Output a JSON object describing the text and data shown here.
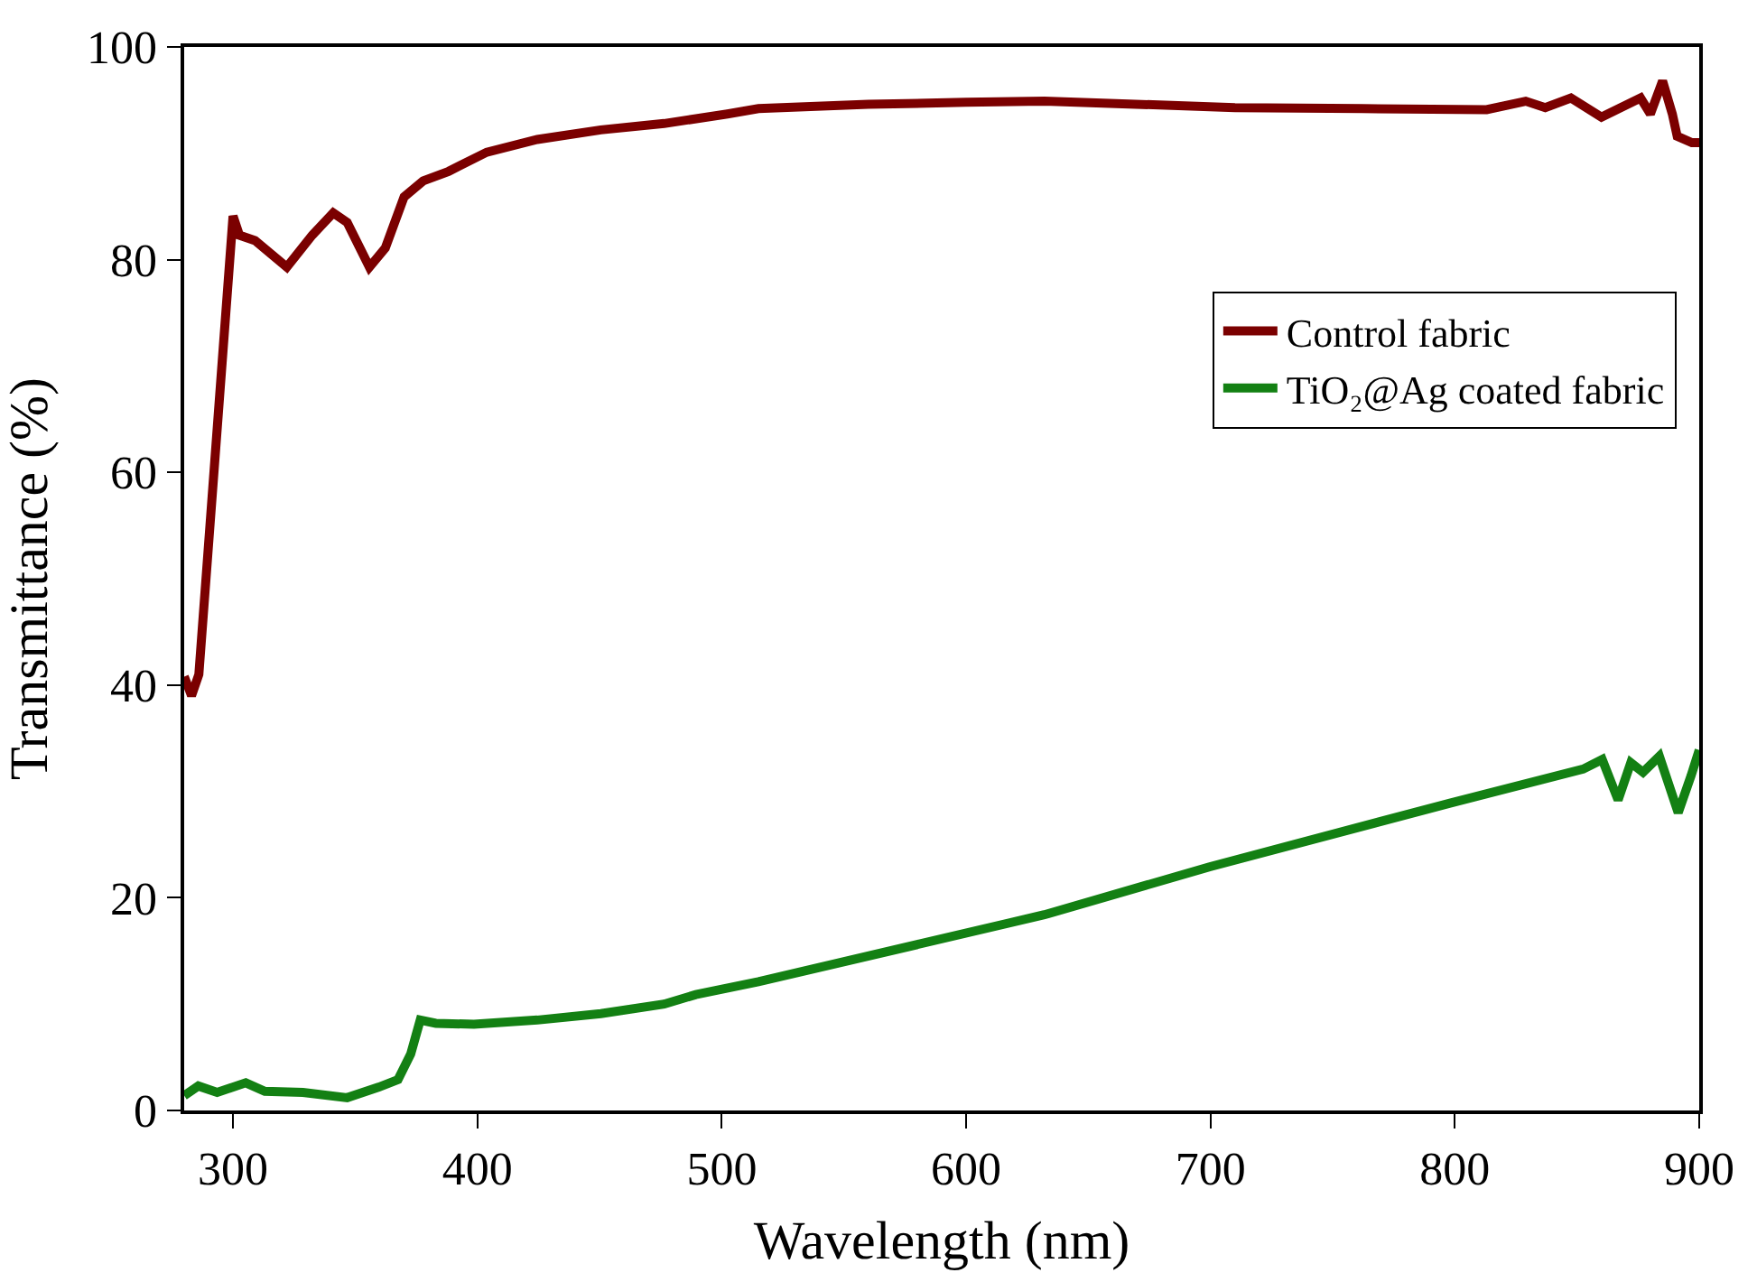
{
  "chart_data": {
    "type": "line",
    "xlabel": "Wavelength (nm)",
    "ylabel": "Transmittance (%)",
    "xlim": [
      280,
      900
    ],
    "xticks": [
      300,
      400,
      500,
      600,
      700,
      800,
      900
    ],
    "ylim": [
      0,
      100
    ],
    "yticks": [
      0,
      20,
      40,
      60,
      80,
      100
    ],
    "legend": "right",
    "marker": "none",
    "line_style": "solid",
    "series": [
      {
        "name": "Control fabric",
        "color": "#7b0000",
        "x": [
          280,
          283,
          286,
          300,
          302.6,
          309,
          322,
          332.4,
          341,
          346.7,
          355.8,
          362.3,
          370,
          377.8,
          388.2,
          403.8,
          424.5,
          450.5,
          476.4,
          502.3,
          515,
          560,
          600,
          632,
          710,
          762,
          813,
          829,
          837,
          847.5,
          860,
          876,
          880,
          885,
          889,
          891,
          897,
          900
        ],
        "values": [
          40.8,
          39,
          41,
          84.1,
          82.3,
          81.8,
          79.3,
          82.3,
          84.4,
          83.5,
          79.3,
          81.1,
          85.9,
          87.4,
          88.3,
          90.1,
          91.3,
          92.2,
          92.8,
          93.7,
          94.2,
          94.6,
          94.8,
          94.9,
          94.3,
          94.2,
          94.1,
          94.9,
          94.3,
          95.2,
          93.4,
          95.2,
          93.7,
          96.8,
          93.7,
          91.6,
          91.0,
          91.0
        ]
      },
      {
        "name": "TiO₂@Ag coated fabric",
        "color": "#138013",
        "x": [
          280,
          285.8,
          293.5,
          305.2,
          313,
          328.6,
          346.7,
          359.7,
          367.5,
          372.7,
          376.6,
          383,
          398.6,
          424.5,
          450.5,
          476.4,
          489.4,
          515,
          632,
          699.5,
          798,
          852.5,
          860.3,
          866.8,
          872,
          877,
          883.7,
          891.4,
          896.7,
          900
        ],
        "values": [
          1.4,
          2.3,
          1.7,
          2.6,
          1.8,
          1.7,
          1.2,
          2.2,
          2.9,
          5.3,
          8.5,
          8.2,
          8.1,
          8.5,
          9.1,
          10.0,
          10.9,
          12.1,
          18.4,
          22.9,
          28.9,
          32.1,
          33.0,
          29.2,
          32.7,
          31.8,
          33.3,
          28.0,
          31.5,
          33.9
        ]
      }
    ]
  }
}
